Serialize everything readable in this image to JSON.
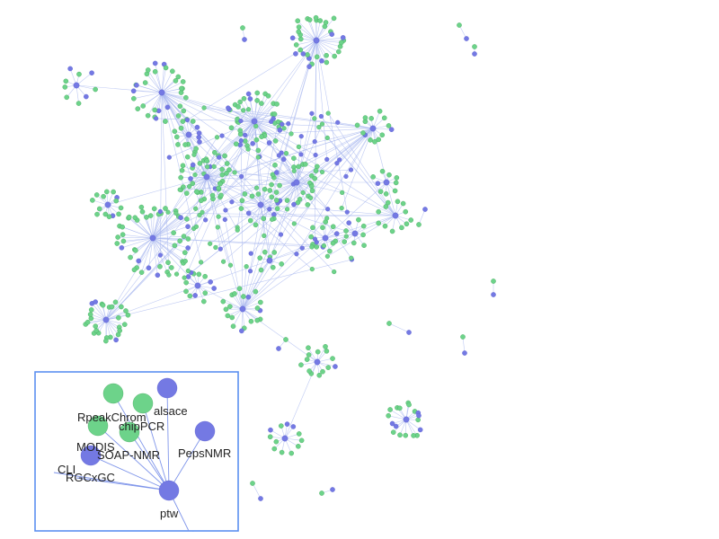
{
  "colors": {
    "tool_node": "#7479e3",
    "package_node": "#6dd38a",
    "node_stroke": "#44a85d",
    "edge": "#a9b8ef",
    "inset_border": "#5b8ff0"
  },
  "graph": {
    "node_types": [
      "tool",
      "package"
    ],
    "clusters": 28
  },
  "inset": {
    "labels": [
      "RpeakChrom",
      "alsace",
      "chipPCR",
      "MODIS",
      "SOAP-NMR",
      "PepsNMR",
      "CLI",
      "RGCxGC",
      "ptw"
    ]
  }
}
